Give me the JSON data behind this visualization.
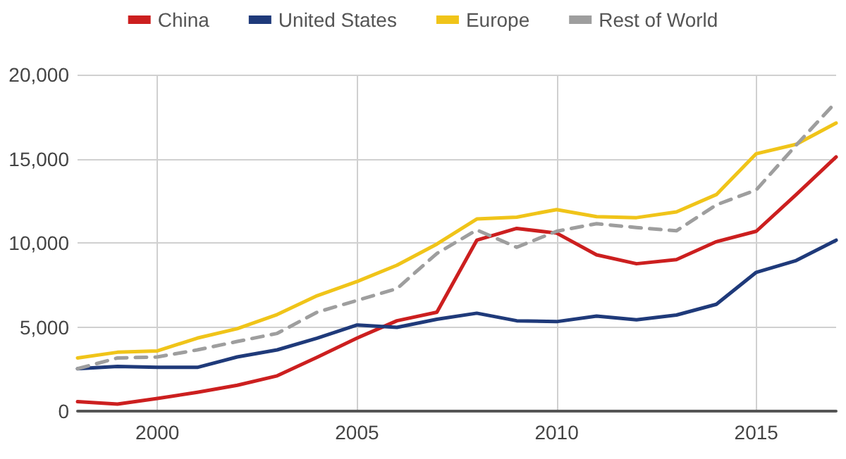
{
  "chart_data": {
    "type": "line",
    "x": [
      1998,
      1999,
      2000,
      2001,
      2002,
      2003,
      2004,
      2005,
      2006,
      2007,
      2008,
      2009,
      2010,
      2011,
      2012,
      2013,
      2014,
      2015,
      2016,
      2017
    ],
    "series": [
      {
        "name": "China",
        "color": "#cc1f1f",
        "values": [
          560,
          420,
          750,
          1120,
          1540,
          2100,
          3200,
          4340,
          5370,
          5880,
          10160,
          10860,
          10580,
          9290,
          8760,
          9010,
          10070,
          10690,
          12870,
          15110
        ]
      },
      {
        "name": "United States",
        "color": "#1f3a7a",
        "values": [
          2520,
          2660,
          2600,
          2600,
          3220,
          3640,
          4340,
          5120,
          4980,
          5460,
          5820,
          5370,
          5320,
          5650,
          5430,
          5710,
          6350,
          8250,
          8950,
          10160
        ]
      },
      {
        "name": "Europe",
        "color": "#f0c419",
        "values": [
          3160,
          3500,
          3580,
          4340,
          4900,
          5740,
          6860,
          7700,
          8670,
          9930,
          11420,
          11530,
          11980,
          11560,
          11500,
          11840,
          12870,
          15300,
          15860,
          17120
        ]
      },
      {
        "name": "Rest of World",
        "color": "#9e9e9e",
        "line_style": "dashed",
        "values": [
          2520,
          3160,
          3220,
          3640,
          4140,
          4620,
          5880,
          6580,
          7280,
          9370,
          10770,
          9740,
          10690,
          11140,
          10910,
          10720,
          12260,
          13150,
          15810,
          18380
        ]
      }
    ],
    "xlim": [
      1998,
      2017
    ],
    "xticks": [
      2000,
      2005,
      2010,
      2015
    ],
    "ylim": [
      0,
      20000
    ],
    "yticks": [
      0,
      {
        "value": 5000,
        "label": "5,000"
      },
      {
        "value": 10000,
        "label": "10,000"
      },
      {
        "value": 15000,
        "label": "15,000"
      },
      {
        "value": 20000,
        "label": "20,000"
      }
    ],
    "grid": true,
    "legend": "top",
    "marker": "none",
    "line_style": "solid"
  }
}
